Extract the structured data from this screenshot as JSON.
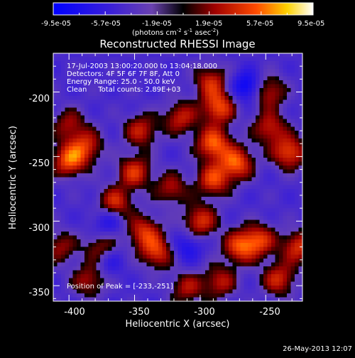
{
  "colorbar": {
    "tick_labels": [
      "-9.5e-05",
      "-5.7e-05",
      "-1.9e-05",
      "1.9e-05",
      "5.7e-05",
      "9.5e-05"
    ],
    "units_label": "(photons cm",
    "units_sup1": "-2",
    "units_mid": " s",
    "units_sup2": "-1",
    "units_tail": " asec",
    "units_sup3": "-2",
    "units_close": ")",
    "range": [
      -9.5e-05,
      9.5e-05
    ]
  },
  "chart_data": {
    "type": "heatmap",
    "title": "Reconstructed RHESSI Image",
    "xlabel": "Heliocentric X (arcsec)",
    "ylabel": "Heliocentric Y (arcsec)",
    "xlim": [
      -412,
      -222
    ],
    "ylim": [
      -362,
      -170
    ],
    "xticks": [
      -400,
      -350,
      -300,
      -250
    ],
    "yticks": [
      -200,
      -250,
      -300,
      -350
    ],
    "xtick_labels": [
      "-400",
      "-350",
      "-300",
      "-250"
    ],
    "ytick_labels": [
      "-200",
      "-250",
      "-300",
      "-350"
    ],
    "annotations": [
      "17-Jul-2003 13:00:20.000 to 13:04:18.000",
      "Detectors: 4F 5F 6F 7F 8F, Att 0",
      "Energy Range: 25.0 - 50.0 keV",
      "Clean     Total counts: 2.89E+03"
    ],
    "peak_label": "Position of Peak = [-233,-251]",
    "peak": [
      -233,
      -251
    ],
    "bright_sources": [
      {
        "x": -290,
        "y": -240,
        "level": 1.0
      },
      {
        "x": -272,
        "y": -255,
        "level": 0.95
      },
      {
        "x": -290,
        "y": -268,
        "level": 0.85
      },
      {
        "x": -300,
        "y": -300,
        "level": 0.8
      },
      {
        "x": -255,
        "y": -315,
        "level": 0.8
      },
      {
        "x": -270,
        "y": -320,
        "level": 0.85
      },
      {
        "x": -350,
        "y": -262,
        "level": 0.8
      },
      {
        "x": -345,
        "y": -230,
        "level": 0.7
      },
      {
        "x": -400,
        "y": -253,
        "level": 0.95
      },
      {
        "x": -387,
        "y": -242,
        "level": 0.7
      },
      {
        "x": -365,
        "y": -286,
        "level": 0.8
      },
      {
        "x": -343,
        "y": -308,
        "level": 0.75
      },
      {
        "x": -333,
        "y": -324,
        "level": 0.8
      },
      {
        "x": -286,
        "y": -212,
        "level": 0.9
      },
      {
        "x": -315,
        "y": -220,
        "level": 0.7
      },
      {
        "x": -232,
        "y": -247,
        "level": 0.9
      },
      {
        "x": -247,
        "y": -228,
        "level": 0.7
      },
      {
        "x": -248,
        "y": -200,
        "level": 0.7
      },
      {
        "x": -225,
        "y": -320,
        "level": 0.8
      },
      {
        "x": -240,
        "y": -345,
        "level": 0.75
      },
      {
        "x": -285,
        "y": -347,
        "level": 0.65
      },
      {
        "x": -310,
        "y": -352,
        "level": 0.6
      },
      {
        "x": -385,
        "y": -346,
        "level": 0.6
      },
      {
        "x": -407,
        "y": -320,
        "level": 0.55
      },
      {
        "x": -400,
        "y": -225,
        "level": 0.55
      },
      {
        "x": -292,
        "y": -192,
        "level": 0.7
      },
      {
        "x": -322,
        "y": -275,
        "level": 0.6
      },
      {
        "x": -375,
        "y": -322,
        "level": 0.65
      }
    ],
    "dark_sources": [
      {
        "x": -264,
        "y": -196,
        "level": 1.0
      },
      {
        "x": -370,
        "y": -300,
        "level": 0.6
      },
      {
        "x": -310,
        "y": -320,
        "level": 0.6
      },
      {
        "x": -370,
        "y": -330,
        "level": 0.6
      }
    ]
  },
  "footer": {
    "timestamp": "26-May-2013 12:07"
  }
}
